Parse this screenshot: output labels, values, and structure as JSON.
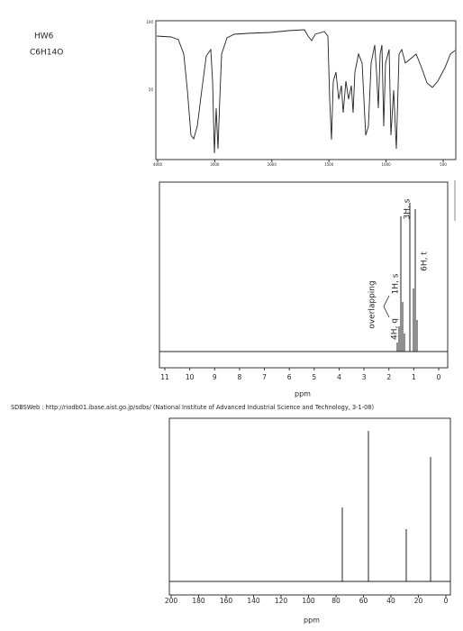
{
  "header": {
    "title": "HW6",
    "formula": "C6H14O"
  },
  "ir": {
    "xtick_labels": [
      "4000",
      "3000",
      "2000",
      "1500",
      "1000",
      "500"
    ],
    "ytick_labels": [
      "100",
      "50"
    ]
  },
  "hnmr": {
    "xtick_labels": [
      "11",
      "10",
      "9",
      "8",
      "7",
      "6",
      "5",
      "4",
      "3",
      "2",
      "1",
      "0"
    ],
    "xlabel": "ppm",
    "annotations": [
      "3H, s",
      "1H, s",
      "overlapping",
      "4H, q",
      "6H, t"
    ]
  },
  "source": "SDBSWeb : http://riodb01.ibase.aist.go.jp/sdbs/ (National Institute of Advanced Industrial Science and Technology, 3-1-08)",
  "cnmr": {
    "xtick_labels": [
      "200",
      "180",
      "160",
      "140",
      "120",
      "100",
      "80",
      "60",
      "40",
      "20",
      "0"
    ],
    "xlabel": "ppm"
  }
}
